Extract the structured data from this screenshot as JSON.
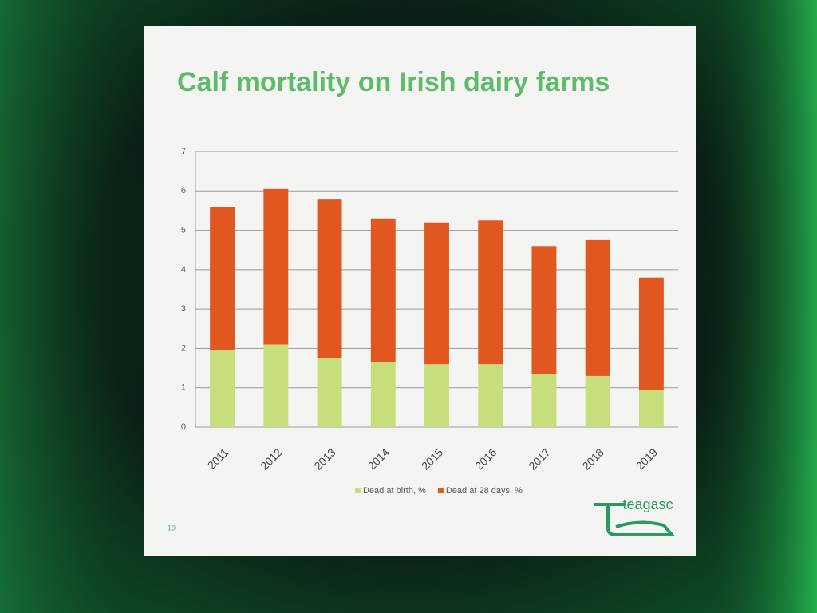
{
  "chart_data": {
    "type": "stacked_bar",
    "title": "Calf mortality on Irish dairy farms",
    "categories": [
      "2011",
      "2012",
      "2013",
      "2014",
      "2015",
      "2016",
      "2017",
      "2018",
      "2019"
    ],
    "series": [
      {
        "name": "Dead at birth, %",
        "color": "#c8de7c",
        "values": [
          1.95,
          2.1,
          1.75,
          1.65,
          1.6,
          1.6,
          1.35,
          1.3,
          0.95
        ]
      },
      {
        "name": "Dead at 28 days, %",
        "color": "#e0581f",
        "values": [
          3.65,
          3.95,
          4.05,
          3.65,
          3.6,
          3.65,
          3.25,
          3.45,
          2.85
        ]
      }
    ],
    "ylim": [
      0,
      7
    ],
    "yticks": [
      0,
      1,
      2,
      3,
      4,
      5,
      6,
      7
    ],
    "grid": true,
    "legend": "bottom",
    "logo": "teagasc",
    "slide_number": "19"
  }
}
